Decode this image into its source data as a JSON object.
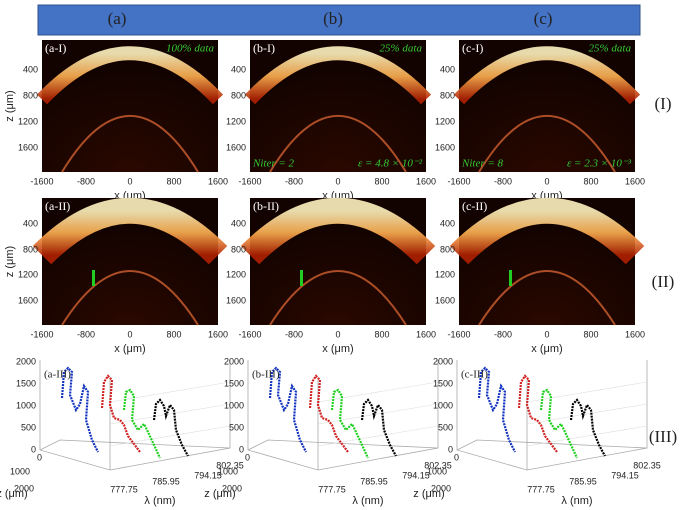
{
  "header": {
    "columns": [
      "(a)",
      "(b)",
      "(c)"
    ]
  },
  "row_labels": [
    "(I)",
    "(II)",
    "(III)"
  ],
  "row1": [
    {
      "label": "(a-I)",
      "note": "100% data"
    },
    {
      "label": "(b-I)",
      "note": "25% data",
      "iterations": "Niter = 2",
      "error": "ε = 4.8 × 10⁻²"
    },
    {
      "label": "(c-I)",
      "note": "25% data",
      "iterations": "Niter = 8",
      "error": "ε = 2.3 × 10⁻³"
    }
  ],
  "row2": [
    {
      "label": "(a-II)"
    },
    {
      "label": "(b-II)"
    },
    {
      "label": "(c-II)"
    }
  ],
  "row3": [
    {
      "label": "(a-III)"
    },
    {
      "label": "(b-III)"
    },
    {
      "label": "(c-III)"
    }
  ],
  "image_axes": {
    "x_ticks": [
      "-1600",
      "-800",
      "0",
      "800",
      "1600"
    ],
    "z_ticks": [
      "400",
      "800",
      "1200",
      "1600"
    ],
    "x_label": "x (μm)",
    "z_label": "z (μm)"
  },
  "plot_axes": {
    "intensity_ticks": [
      "2000",
      "1500",
      "1000",
      "500",
      "0"
    ],
    "depth_ticks": [
      "0",
      "1000",
      "2000"
    ],
    "wavelength_ticks": [
      "777.75",
      "785.95",
      "794.15",
      "802.35"
    ],
    "depth_label": "z (μm)",
    "wavelength_label": "λ (nm)"
  }
}
